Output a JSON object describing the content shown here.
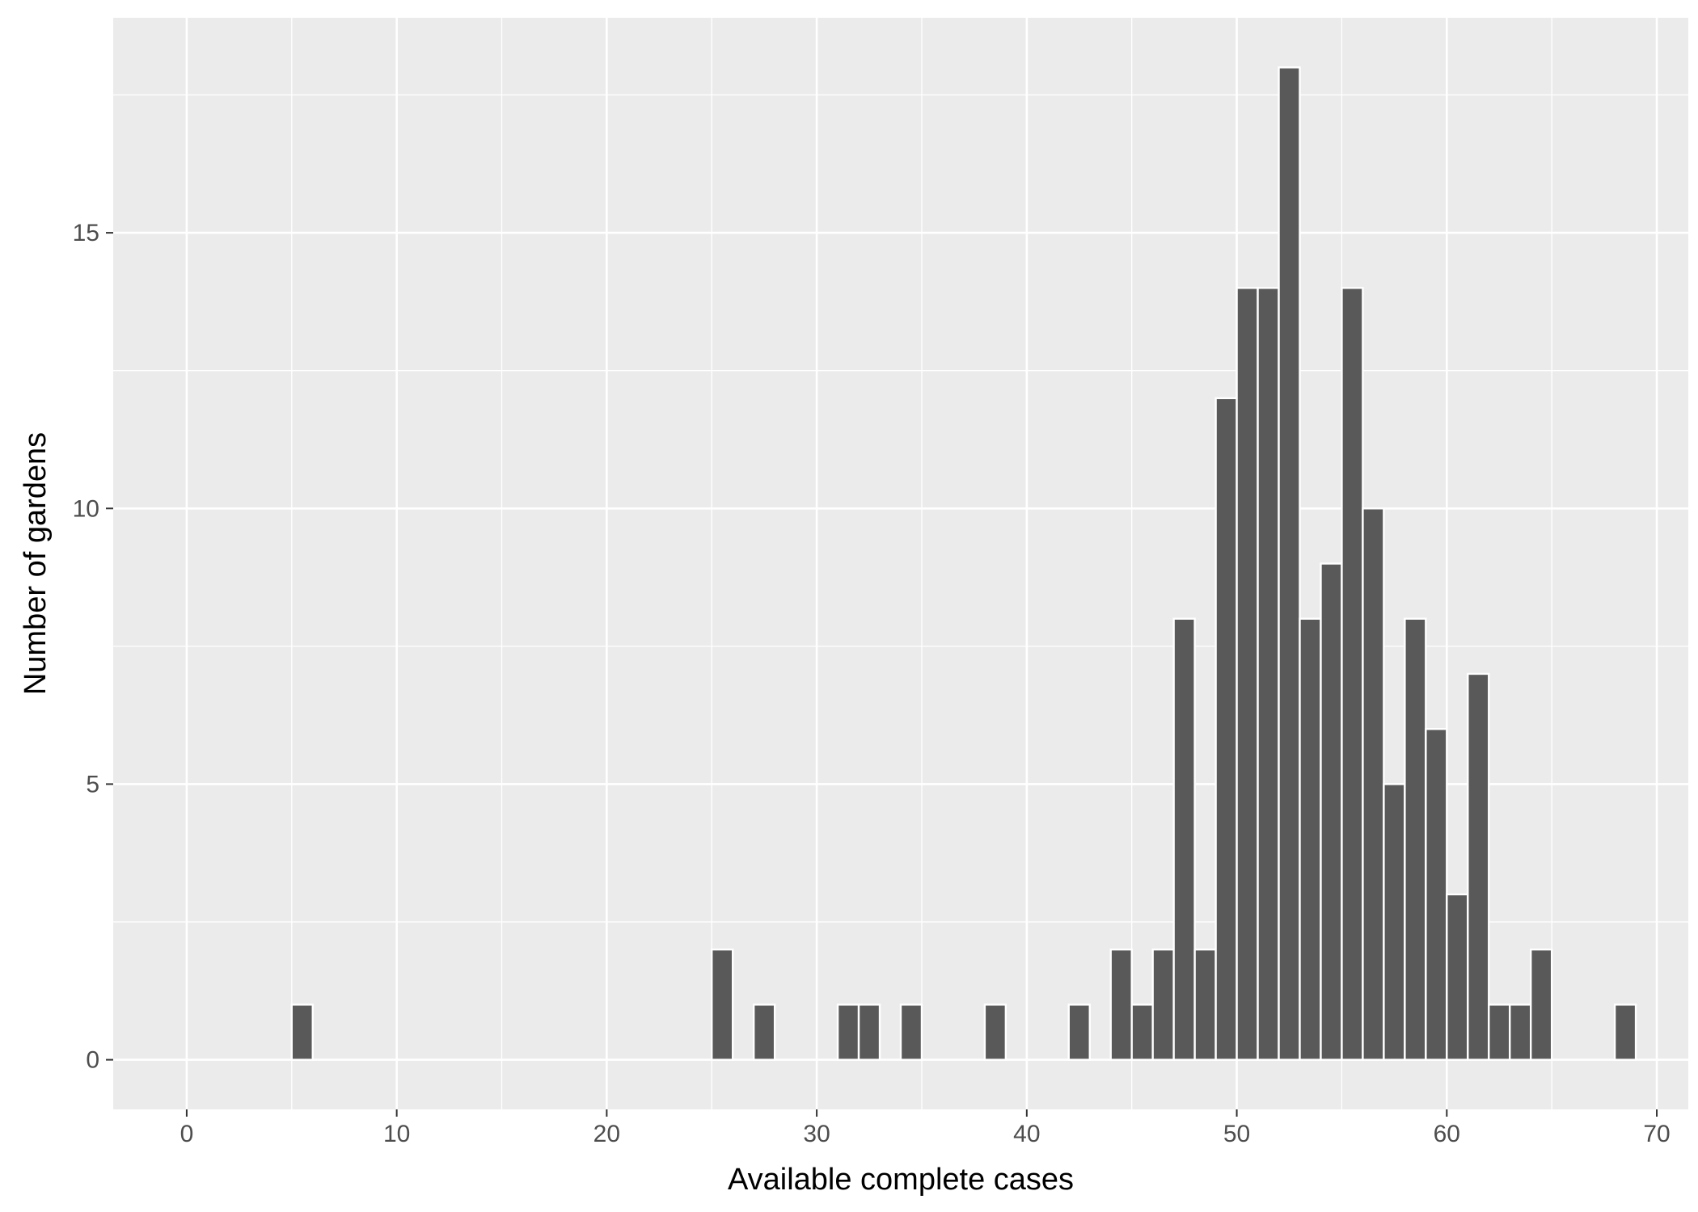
{
  "chart_data": {
    "type": "bar",
    "title": "",
    "xlabel": "Available complete cases",
    "ylabel": "Number of gardens",
    "xlim": [
      -3.5,
      71.5
    ],
    "ylim": [
      -0.9,
      18.9
    ],
    "x_ticks": [
      0,
      10,
      20,
      30,
      40,
      50,
      60,
      70
    ],
    "x_tick_labels": [
      "0",
      "10",
      "20",
      "30",
      "40",
      "50",
      "60",
      "70"
    ],
    "y_ticks": [
      0,
      5,
      10,
      15
    ],
    "y_tick_labels": [
      "0",
      "5",
      "10",
      "15"
    ],
    "bin_width": 1,
    "grid": true,
    "legend": "none",
    "colors": {
      "panel_background": "#ebebeb",
      "grid_line": "#ffffff",
      "bar_fill": "#595959",
      "bar_outline": "#ffffff"
    },
    "x": [
      5,
      25,
      27,
      31,
      32,
      34,
      38,
      42,
      44,
      45,
      46,
      47,
      48,
      49,
      50,
      51,
      52,
      53,
      54,
      55,
      56,
      57,
      58,
      59,
      60,
      61,
      62,
      63,
      64,
      68
    ],
    "values": [
      1,
      2,
      1,
      1,
      1,
      1,
      1,
      1,
      2,
      1,
      2,
      8,
      2,
      12,
      14,
      14,
      18,
      8,
      9,
      14,
      10,
      5,
      8,
      6,
      3,
      7,
      1,
      1,
      2,
      1
    ]
  }
}
